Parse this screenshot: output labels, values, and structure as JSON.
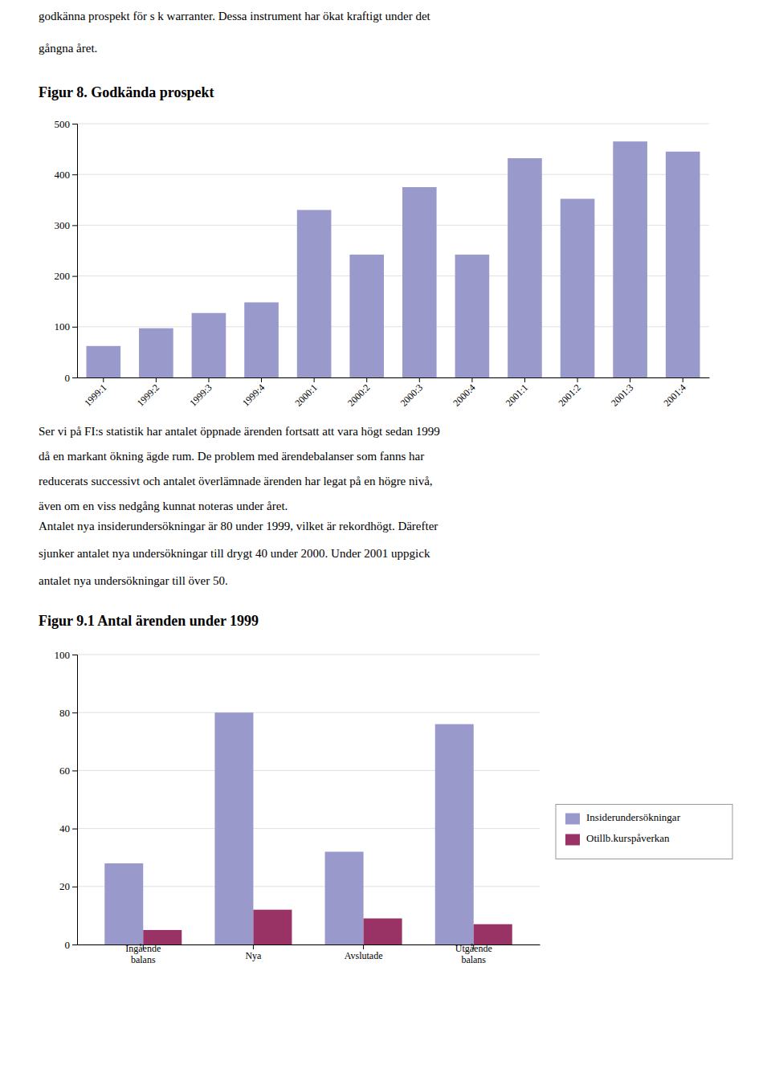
{
  "paragraphs": [
    [
      "godkänna prospekt för s k warranter. Dessa instrument har ökat kraftigt under det",
      "gångna året."
    ],
    [
      "Ser vi på FI:s statistik har antalet öppnade ärenden fortsatt att vara högt sedan 1999",
      "då en markant ökning ägde rum. De problem med ärendebalanser som fanns har",
      "reducerats successivt och antalet överlämnade ärenden har legat på en högre nivå,",
      "även om en viss nedgång kunnat noteras under året."
    ],
    [
      "Antalet nya insiderundersökningar är 80 under 1999, vilket är rekordhögt. Därefter",
      "sjunker antalet nya undersökningar till drygt 40 under 2000. Under 2001 uppgick",
      "antalet nya undersökningar till över 50."
    ]
  ],
  "chart_data": [
    {
      "type": "bar",
      "title": "Figur 8. Godkända prospekt",
      "categories": [
        "1999:1",
        "1999:2",
        "1999:3",
        "1999:4",
        "2000:1",
        "2000:2",
        "2000:3",
        "2000:4",
        "2001:1",
        "2001:2",
        "2001:3",
        "2001:4"
      ],
      "values": [
        62,
        97,
        127,
        148,
        330,
        242,
        375,
        242,
        432,
        352,
        465,
        445
      ],
      "color": "#9999cc",
      "ylim": [
        0,
        500
      ],
      "yticks": [
        0,
        100,
        200,
        300,
        400,
        500
      ],
      "grid": true
    },
    {
      "type": "bar",
      "title": "Figur 9.1 Antal ärenden under 1999",
      "categories": [
        "Ingående\nbalans",
        "Nya",
        "Avslutade",
        "Utgående\nbalans"
      ],
      "series": [
        {
          "name": "Insiderundersökningar",
          "color": "#9999cc",
          "values": [
            28,
            80,
            32,
            76
          ]
        },
        {
          "name": "Otillb.kurspåverkan",
          "color": "#993366",
          "values": [
            5,
            12,
            9,
            7
          ]
        }
      ],
      "ylim": [
        0,
        100
      ],
      "yticks": [
        0,
        20,
        40,
        60,
        80,
        100
      ],
      "grid": true,
      "legend": "right"
    }
  ]
}
